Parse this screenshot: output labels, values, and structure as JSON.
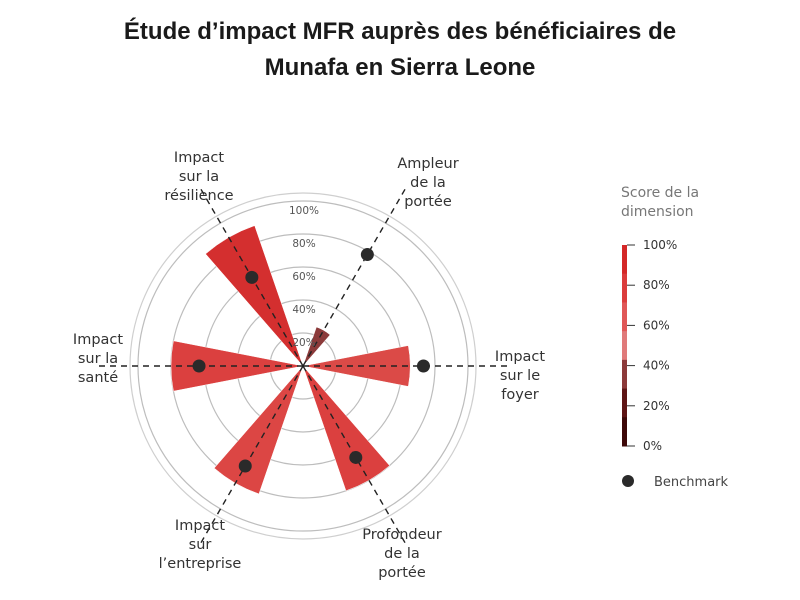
{
  "title_lines": [
    "Étude d’impact MFR auprès des bénéficiaires de",
    "Munafa en Sierra Leone"
  ],
  "chart_data": {
    "type": "polar-bar",
    "title": "Étude d’impact MFR auprès des bénéficiaires de Munafa en Sierra Leone",
    "radial_ticks": [
      "20%",
      "40%",
      "60%",
      "80%",
      "100%"
    ],
    "rlim": [
      0,
      100
    ],
    "grid": true,
    "categories": [
      {
        "label": [
          "Ampleur",
          "de la",
          "portée"
        ],
        "score": 25,
        "benchmark": 78,
        "color": "#8b3a3a"
      },
      {
        "label": [
          "Impact",
          "sur le",
          "foyer"
        ],
        "score": 65,
        "benchmark": 73,
        "color": "#db4a47"
      },
      {
        "label": [
          "Profondeur",
          "de la",
          "portée"
        ],
        "score": 80,
        "benchmark": 64,
        "color": "#db403f"
      },
      {
        "label": [
          "Impact",
          "sur",
          "l’entreprise"
        ],
        "score": 82,
        "benchmark": 70,
        "color": "#dc4644"
      },
      {
        "label": [
          "Impact",
          "sur la",
          "santé"
        ],
        "score": 80,
        "benchmark": 63,
        "color": "#db403f"
      },
      {
        "label": [
          "Impact",
          "sur la",
          "résilience"
        ],
        "score": 90,
        "benchmark": 62,
        "color": "#d42f2f"
      }
    ],
    "legend": {
      "title": [
        "Score de la",
        "dimension"
      ],
      "ticks": [
        "100%",
        "80%",
        "60%",
        "40%",
        "20%",
        "0%"
      ],
      "colors": [
        "#d42828",
        "#db3c3c",
        "#e05757",
        "#e07a7a",
        "#8c3a3a",
        "#5e1515",
        "#3d0808"
      ],
      "benchmark_label": "Benchmark",
      "position": "right"
    }
  }
}
